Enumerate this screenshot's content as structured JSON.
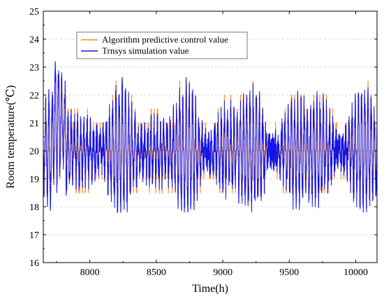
{
  "chart_data": {
    "type": "line",
    "title": "",
    "xlabel": "Time(h)",
    "ylabel": "Room temperature(℃)",
    "xlim": [
      7650,
      10160
    ],
    "ylim": [
      16,
      25
    ],
    "x_ticks": [
      8000,
      8500,
      9000,
      9500,
      10000
    ],
    "y_ticks": [
      16,
      17,
      18,
      19,
      20,
      21,
      22,
      23,
      24,
      25
    ],
    "grid": "horizontal dashed",
    "legend_position": "top-left",
    "series": [
      {
        "name": "Algorithm predictive control value",
        "color": "#ff8c1a",
        "sampling": "hourly, setpoint-like values stepped in 0.5 ℃ increments",
        "range": [
          18.5,
          22.5
        ],
        "baseline": 20.0
      },
      {
        "name": "Trnsys simulation value",
        "color": "#1414e6",
        "sampling": "hourly, continuous oscillation",
        "range": [
          17.8,
          23.2
        ],
        "baseline": 20.0
      }
    ],
    "annotations": []
  }
}
